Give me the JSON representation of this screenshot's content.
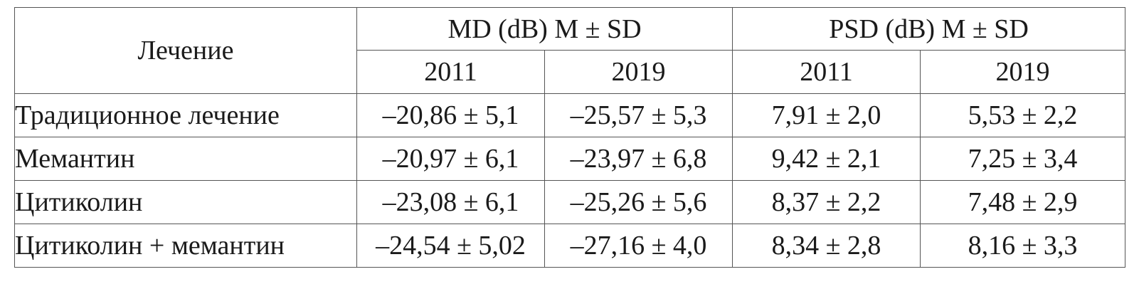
{
  "table": {
    "treatment_header": "Лечение",
    "groups": [
      {
        "label": "MD (dB) M ± SD",
        "years": [
          "2011",
          "2019"
        ]
      },
      {
        "label": "PSD (dB) M ± SD",
        "years": [
          "2011",
          "2019"
        ]
      }
    ],
    "rows": [
      {
        "treatment": "Традиционное лечение",
        "values": [
          "–20,86 ± 5,1",
          "–25,57 ± 5,3",
          "7,91 ± 2,0",
          "5,53 ± 2,2"
        ]
      },
      {
        "treatment": "Мемантин",
        "values": [
          "–20,97 ± 6,1",
          "–23,97 ± 6,8",
          "9,42 ± 2,1",
          "7,25 ± 3,4"
        ]
      },
      {
        "treatment": "Цитиколин",
        "values": [
          "–23,08 ± 6,1",
          "–25,26 ± 5,6",
          "8,37 ± 2,2",
          "7,48 ± 2,9"
        ]
      },
      {
        "treatment": "Цитиколин + мемантин",
        "values": [
          "–24,54 ± 5,02",
          "–27,16 ± 4,0",
          "8,34 ± 2,8",
          "8,16 ± 3,3"
        ]
      }
    ]
  }
}
